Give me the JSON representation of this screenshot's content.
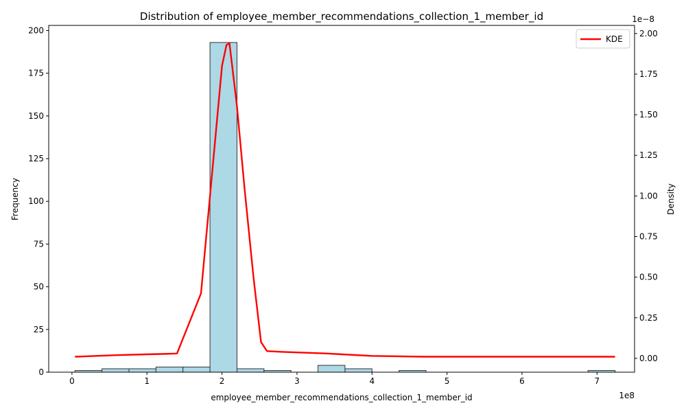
{
  "chart_data": {
    "type": "bar",
    "title": "Distribution of employee_member_recommendations_collection_1_member_id",
    "xlabel": "employee_member_recommendations_collection_1_member_id",
    "ylabel": "Frequency",
    "ylabel_right": "Density",
    "x_scale_label": "1e8",
    "y2_scale_label": "1e−8",
    "xlim": [
      -0.31,
      7.5
    ],
    "ylim": [
      0,
      203
    ],
    "y2lim": [
      -0.085,
      2.05
    ],
    "x_ticks": [
      0,
      1,
      2,
      3,
      4,
      5,
      6,
      7
    ],
    "y_ticks": [
      0,
      25,
      50,
      75,
      100,
      125,
      150,
      175,
      200
    ],
    "y2_ticks": [
      "0.00",
      "0.25",
      "0.50",
      "0.75",
      "1.00",
      "1.25",
      "1.50",
      "1.75",
      "2.00"
    ],
    "legend": {
      "position": "top-right",
      "entries": [
        "KDE"
      ]
    },
    "grid": false,
    "colors": {
      "bars": "#add8e6",
      "bar_edge": "#333333",
      "kde": "#ff0000"
    },
    "histogram": {
      "bin_edges": [
        0.04,
        0.4,
        0.76,
        1.12,
        1.48,
        1.84,
        2.2,
        2.56,
        2.92,
        3.28,
        3.64,
        4.0,
        4.36,
        4.72,
        5.08,
        5.44,
        5.8,
        6.16,
        6.52,
        6.88,
        7.24
      ],
      "counts": [
        1,
        2,
        2,
        3,
        3,
        193,
        2,
        1,
        0,
        4,
        2,
        0,
        1,
        0,
        0,
        0,
        0,
        0,
        0,
        1
      ]
    },
    "series": [
      {
        "name": "KDE",
        "x": [
          0.04,
          0.6,
          1.0,
          1.2,
          1.4,
          1.72,
          1.9,
          2.0,
          2.06,
          2.1,
          2.2,
          2.3,
          2.42,
          2.52,
          2.6,
          2.8,
          3.4,
          3.6,
          4.0,
          4.7,
          5.5,
          6.5,
          7.24
        ],
        "y": [
          0.01,
          0.02,
          0.025,
          0.027,
          0.03,
          0.4,
          1.3,
          1.8,
          1.93,
          1.94,
          1.55,
          1.05,
          0.5,
          0.1,
          0.045,
          0.04,
          0.03,
          0.025,
          0.015,
          0.01,
          0.01,
          0.01,
          0.01
        ]
      }
    ]
  }
}
